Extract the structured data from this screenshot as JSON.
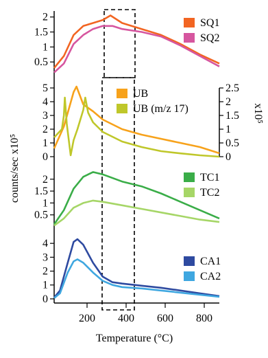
{
  "figure": {
    "ylabel_left": "counts/sec x10⁵",
    "xlabel": "Temperature (°C)",
    "x_ticks": [
      "200",
      "400",
      "600",
      "800"
    ]
  },
  "chart_data": [
    {
      "type": "line",
      "panel": "SQ",
      "x_range": [
        50,
        900
      ],
      "ylim": [
        0,
        2.2
      ],
      "y_ticks": [
        "0.5",
        "1",
        "1.5",
        "2"
      ],
      "series": [
        {
          "name": "SQ1",
          "color": "#f26522",
          "points": [
            [
              50,
              0.3
            ],
            [
              100,
              0.7
            ],
            [
              150,
              1.4
            ],
            [
              200,
              1.7
            ],
            [
              250,
              1.8
            ],
            [
              300,
              1.9
            ],
            [
              340,
              2.05
            ],
            [
              400,
              1.8
            ],
            [
              500,
              1.6
            ],
            [
              600,
              1.4
            ],
            [
              700,
              1.1
            ],
            [
              800,
              0.75
            ],
            [
              900,
              0.45
            ]
          ]
        },
        {
          "name": "SQ2",
          "color": "#d6569f",
          "points": [
            [
              50,
              0.15
            ],
            [
              100,
              0.45
            ],
            [
              150,
              1.1
            ],
            [
              200,
              1.4
            ],
            [
              250,
              1.6
            ],
            [
              300,
              1.7
            ],
            [
              350,
              1.7
            ],
            [
              400,
              1.6
            ],
            [
              500,
              1.5
            ],
            [
              600,
              1.35
            ],
            [
              700,
              1.05
            ],
            [
              800,
              0.7
            ],
            [
              900,
              0.35
            ]
          ]
        }
      ]
    },
    {
      "type": "line",
      "panel": "UB",
      "x_range": [
        50,
        900
      ],
      "ylim": [
        0,
        5
      ],
      "y_ticks": [
        "0",
        "1",
        "2",
        "3",
        "4",
        "5"
      ],
      "y2lim": [
        0,
        2.5
      ],
      "y2_ticks": [
        "0",
        "0.5",
        "1",
        "1.5",
        "2",
        "2.5"
      ],
      "y2_label": "x10⁵",
      "series": [
        {
          "name": "UB",
          "color": "#f7a21b",
          "axis": "left",
          "points": [
            [
              50,
              0.6
            ],
            [
              100,
              2.2
            ],
            [
              150,
              4.7
            ],
            [
              165,
              5.1
            ],
            [
              200,
              3.8
            ],
            [
              250,
              3.3
            ],
            [
              300,
              2.7
            ],
            [
              400,
              2.0
            ],
            [
              500,
              1.6
            ],
            [
              600,
              1.3
            ],
            [
              700,
              1.0
            ],
            [
              800,
              0.7
            ],
            [
              900,
              0.25
            ]
          ]
        },
        {
          "name": "UB (m/z 17)",
          "color": "#bfc72a",
          "axis": "right",
          "points": [
            [
              50,
              0.7
            ],
            [
              90,
              1.0
            ],
            [
              100,
              1.5
            ],
            [
              105,
              2.15
            ],
            [
              115,
              1.2
            ],
            [
              135,
              0.05
            ],
            [
              150,
              0.6
            ],
            [
              170,
              1.0
            ],
            [
              200,
              1.7
            ],
            [
              210,
              2.15
            ],
            [
              225,
              1.6
            ],
            [
              250,
              1.25
            ],
            [
              300,
              0.9
            ],
            [
              400,
              0.55
            ],
            [
              500,
              0.35
            ],
            [
              600,
              0.2
            ],
            [
              700,
              0.12
            ],
            [
              800,
              0.05
            ],
            [
              900,
              0.0
            ]
          ]
        }
      ]
    },
    {
      "type": "line",
      "panel": "TC",
      "x_range": [
        50,
        900
      ],
      "ylim": [
        0,
        2.6
      ],
      "y_ticks": [
        "0.5",
        "1",
        "1.5",
        "2"
      ],
      "series": [
        {
          "name": "TC1",
          "color": "#3aad48",
          "points": [
            [
              50,
              0.1
            ],
            [
              100,
              0.7
            ],
            [
              150,
              1.6
            ],
            [
              200,
              2.1
            ],
            [
              250,
              2.3
            ],
            [
              300,
              2.2
            ],
            [
              400,
              1.9
            ],
            [
              500,
              1.7
            ],
            [
              600,
              1.4
            ],
            [
              700,
              1.05
            ],
            [
              800,
              0.7
            ],
            [
              900,
              0.35
            ]
          ]
        },
        {
          "name": "TC2",
          "color": "#a6d667",
          "points": [
            [
              50,
              0.05
            ],
            [
              100,
              0.35
            ],
            [
              150,
              0.8
            ],
            [
              200,
              1.0
            ],
            [
              250,
              1.1
            ],
            [
              300,
              1.05
            ],
            [
              400,
              0.9
            ],
            [
              500,
              0.75
            ],
            [
              600,
              0.6
            ],
            [
              700,
              0.45
            ],
            [
              800,
              0.3
            ],
            [
              900,
              0.2
            ]
          ]
        }
      ]
    },
    {
      "type": "line",
      "panel": "CA",
      "x_range": [
        50,
        900
      ],
      "ylim": [
        -0.3,
        4.8
      ],
      "y_ticks": [
        "0",
        "1",
        "2",
        "3",
        "4"
      ],
      "series": [
        {
          "name": "CA1",
          "color": "#2e4aa0",
          "points": [
            [
              50,
              0.1
            ],
            [
              80,
              0.6
            ],
            [
              120,
              2.6
            ],
            [
              150,
              4.1
            ],
            [
              170,
              4.3
            ],
            [
              200,
              3.9
            ],
            [
              250,
              2.6
            ],
            [
              300,
              1.6
            ],
            [
              350,
              1.2
            ],
            [
              400,
              1.1
            ],
            [
              500,
              0.95
            ],
            [
              600,
              0.8
            ],
            [
              700,
              0.6
            ],
            [
              800,
              0.4
            ],
            [
              900,
              0.2
            ]
          ]
        },
        {
          "name": "CA2",
          "color": "#3fa7e0",
          "points": [
            [
              50,
              0.05
            ],
            [
              80,
              0.4
            ],
            [
              120,
              1.9
            ],
            [
              150,
              2.7
            ],
            [
              170,
              2.85
            ],
            [
              200,
              2.6
            ],
            [
              250,
              1.9
            ],
            [
              300,
              1.3
            ],
            [
              350,
              1.0
            ],
            [
              400,
              0.85
            ],
            [
              500,
              0.75
            ],
            [
              600,
              0.6
            ],
            [
              700,
              0.45
            ],
            [
              800,
              0.3
            ],
            [
              900,
              0.15
            ]
          ]
        }
      ]
    }
  ]
}
